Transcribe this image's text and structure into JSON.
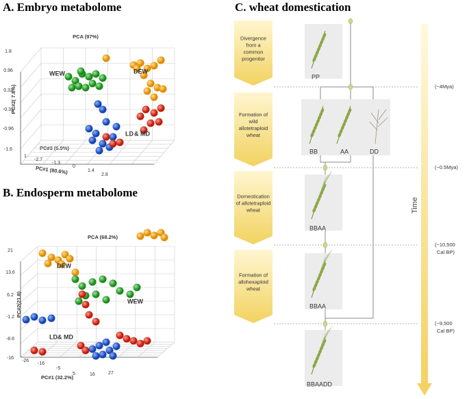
{
  "panel_a": {
    "title": "A. Embryo metabolome",
    "plot_title": "PCA (97%)",
    "y_label": "PC#2( 7.8%)",
    "z_label": "PC#3 (6.9%)",
    "x_label": "PC#1 (80.6%)",
    "y_ticks": [
      "1.8",
      "0.96",
      "0.32",
      "-0.32",
      "-0.96",
      "-1.6"
    ],
    "x_ticks": [
      "1",
      "-2.7",
      "-1.3",
      "0",
      "1.4",
      "2.8"
    ],
    "groups": [
      "WEW",
      "DEW",
      "LD",
      "&",
      "MD"
    ]
  },
  "panel_b": {
    "title": "B. Endosperm metabolome",
    "plot_title": "PCA (68.2%)",
    "y_label": "PC#2(21.8)",
    "x_label": "PC#1 (32.2%)",
    "y_ticks": [
      "21",
      "13.6",
      "6.2",
      "-1.2",
      "-8.6",
      "-16"
    ],
    "x_ticks": [
      "-26",
      "-16",
      "-5",
      "5",
      "16",
      "27"
    ],
    "groups": [
      "DEW",
      "WEW",
      "LD",
      "&",
      "MD"
    ]
  },
  "panel_c": {
    "title": "C. wheat domestication",
    "stages": [
      {
        "lines": [
          "Divergence",
          "from a",
          "common",
          "progenitor"
        ]
      },
      {
        "lines": [
          "Formation of",
          "wild",
          "allotetraploid",
          "wheat"
        ]
      },
      {
        "lines": [
          "Domestication",
          "of allotetraploid",
          "wheat"
        ]
      },
      {
        "lines": [
          "Formation of",
          "allohexaploid",
          "wheat"
        ]
      }
    ],
    "genomes": [
      "PP",
      "BB",
      "AA",
      "DD",
      "BBAA",
      "BBAA",
      "BBAADD"
    ],
    "times": [
      {
        "lines": [
          "(~4Mya)"
        ]
      },
      {
        "lines": [
          "(~0.5Mya)"
        ]
      },
      {
        "lines": [
          "(~10,500",
          "Cal BP)"
        ]
      },
      {
        "lines": [
          "(~9,500",
          "Cal BP)"
        ]
      }
    ],
    "axis_label": "Time"
  }
}
